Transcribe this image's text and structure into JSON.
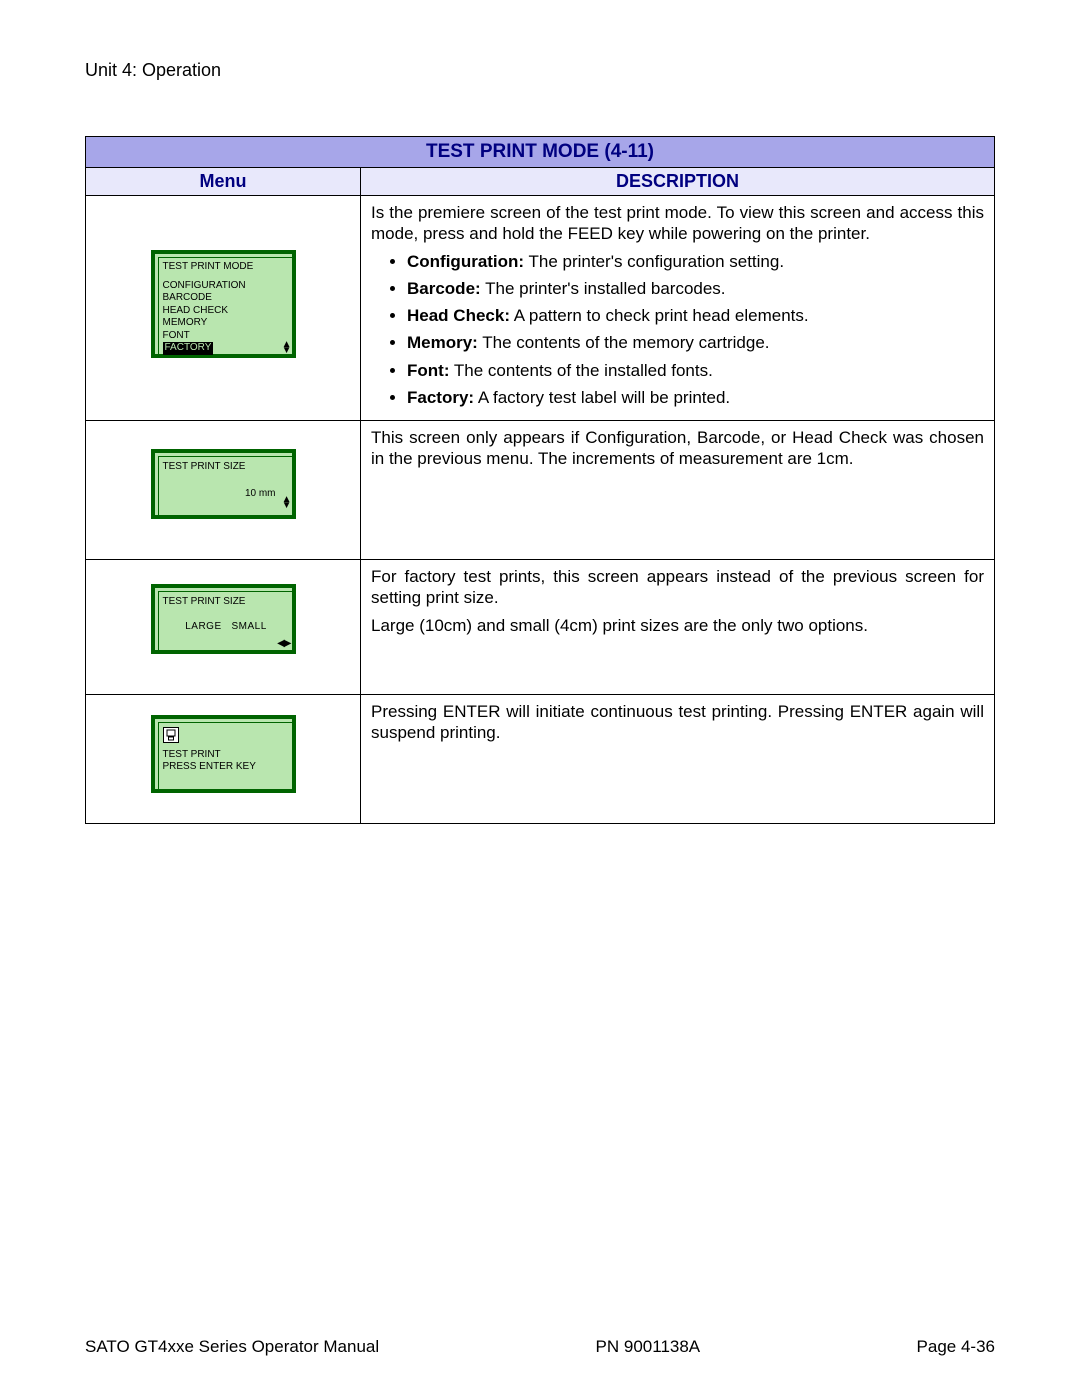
{
  "header": {
    "unit": "Unit 4:   Operation"
  },
  "table": {
    "title": "TEST PRINT MODE (4-11)",
    "col_menu": "Menu",
    "col_desc": "DESCRIPTION"
  },
  "row1": {
    "lcd_title": "TEST PRINT MODE",
    "opts": [
      "CONFIGURATION",
      "BARCODE",
      "HEAD CHECK",
      "MEMORY",
      "FONT",
      "FACTORY"
    ],
    "selected_index": 5,
    "desc_intro": "Is the premiere screen of the test print mode. To view this screen and access this mode, press and hold the FEED key while powering on the printer.",
    "bullets": [
      {
        "b": "Configuration:",
        "t": " The printer's configuration setting."
      },
      {
        "b": "Barcode:",
        "t": " The printer's installed barcodes."
      },
      {
        "b": "Head Check:",
        "t": " A pattern to check print head elements."
      },
      {
        "b": "Memory:",
        "t": " The contents of the memory cartridge."
      },
      {
        "b": "Font:",
        "t": " The contents of the installed fonts."
      },
      {
        "b": "Factory:",
        "t": " A factory test label will be printed."
      }
    ]
  },
  "row2": {
    "lcd_title": "TEST PRINT SIZE",
    "value": "10 mm",
    "desc": "This screen only appears if Configuration, Barcode, or Head Check was chosen in the previous menu. The increments of measurement are 1cm."
  },
  "row3": {
    "lcd_title": "TEST PRINT SIZE",
    "opt_left": "LARGE",
    "opt_right": "SMALL",
    "desc1": "For factory test prints, this screen appears instead of the previous screen for setting print size.",
    "desc2": "Large (10cm) and small (4cm) print sizes are the only two options."
  },
  "row4": {
    "line1": "TEST PRINT",
    "line2": "PRESS ENTER KEY",
    "desc": "Pressing ENTER will initiate continuous test printing. Pressing ENTER again will suspend printing."
  },
  "footer": {
    "left": "SATO GT4xxe Series Operator Manual",
    "center": "PN  9001138A",
    "right": "Page 4-36"
  },
  "style": {
    "header_bg": "#a7a6e9",
    "subheader_bg": "#e8e8fb",
    "header_text": "#000080",
    "lcd_bg": "#b9e6af",
    "lcd_border": "#006400"
  }
}
